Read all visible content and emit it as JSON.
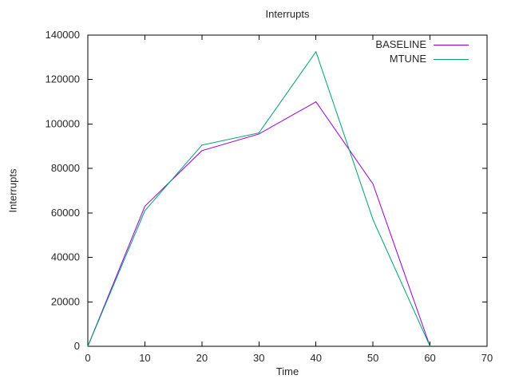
{
  "colors": {
    "background": "#ffffff",
    "border": "#000000",
    "text": "#262626",
    "baseline_series": "#9400d3",
    "mtune_series": "#009e73"
  },
  "chart_data": {
    "type": "line",
    "title": "Interrupts",
    "xlabel": "Time",
    "ylabel": "Interrupts",
    "xlim": [
      0,
      70
    ],
    "ylim": [
      0,
      140000
    ],
    "xticks": [
      0,
      10,
      20,
      30,
      40,
      50,
      60,
      70
    ],
    "yticks": [
      0,
      20000,
      40000,
      60000,
      80000,
      100000,
      120000,
      140000
    ],
    "grid": false,
    "legend_position": "top-right-inside",
    "x": [
      0,
      10,
      20,
      30,
      40,
      50,
      60
    ],
    "series": [
      {
        "name": "BASELINE",
        "color": "#9400d3",
        "values": [
          0,
          63000,
          88000,
          95500,
          110000,
          73000,
          0
        ]
      },
      {
        "name": "MTUNE",
        "color": "#009e73",
        "values": [
          0,
          61000,
          90500,
          96000,
          132500,
          57000,
          0
        ]
      }
    ]
  }
}
